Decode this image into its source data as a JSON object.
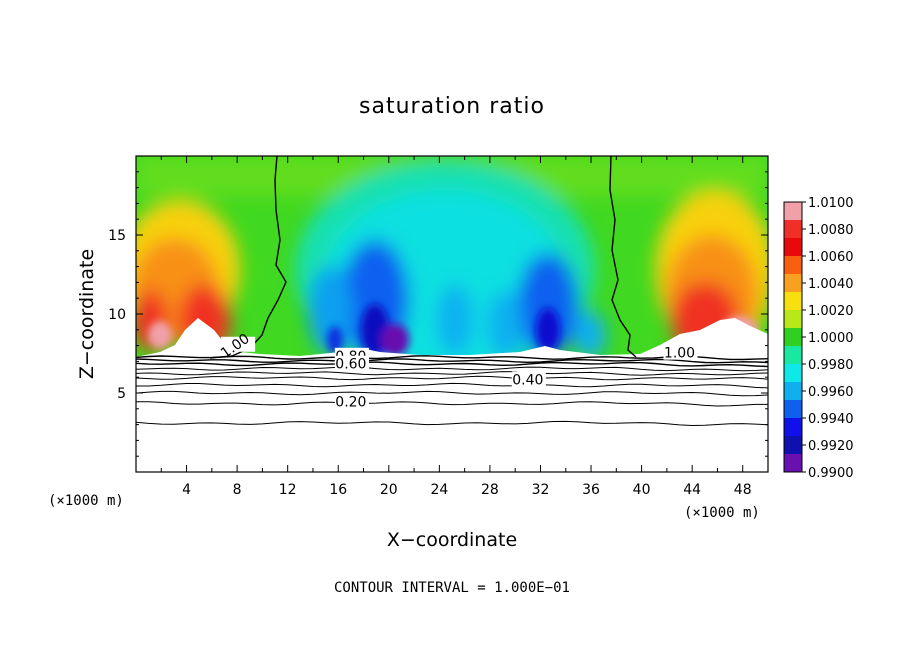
{
  "chart_data": {
    "type": "heatmap",
    "title": "saturation ratio",
    "xlabel": "X−coordinate",
    "ylabel": "Z−coordinate",
    "x_units": "(×1000 m)",
    "x_units_right": "(×1000 m)",
    "footer": "CONTOUR INTERVAL = 1.000E−01",
    "xlim": [
      0,
      50
    ],
    "ylim": [
      0,
      20
    ],
    "xticks": [
      4,
      8,
      12,
      16,
      20,
      24,
      28,
      32,
      36,
      40,
      44,
      48
    ],
    "xtick_labels": [
      "4",
      "8",
      "12",
      "16",
      "20",
      "24",
      "28",
      "32",
      "36",
      "40",
      "44",
      "48"
    ],
    "yticks": [
      5,
      10,
      15
    ],
    "ytick_labels": [
      "5",
      "10",
      "15"
    ],
    "grid": false,
    "colorbar": {
      "min": 0.99,
      "max": 1.01,
      "labels": [
        "1.0100",
        "1.0080",
        "1.0060",
        "1.0040",
        "1.0020",
        "1.0000",
        "0.9980",
        "0.9960",
        "0.9940",
        "0.9920",
        "0.9900"
      ],
      "colors": [
        "#f0a0a8",
        "#f03028",
        "#e80a0a",
        "#f86010",
        "#f8a020",
        "#f8e010",
        "#b8e818",
        "#30d020",
        "#18e8a0",
        "#10e8e8",
        "#10b0f0",
        "#1060f0",
        "#1010e8",
        "#1010b0",
        "#6810b0"
      ]
    },
    "contour_labels": [
      {
        "text": "1.00",
        "x": 8,
        "z": 7.8
      },
      {
        "text": "1.00",
        "x": 43,
        "z": 7.3
      },
      {
        "text": "0.80",
        "x": 17,
        "z": 7.1
      },
      {
        "text": "0.60",
        "x": 17,
        "z": 6.6
      },
      {
        "text": "0.40",
        "x": 31,
        "z": 5.6
      },
      {
        "text": "0.20",
        "x": 17,
        "z": 4.2
      }
    ],
    "contour_levels": [
      0.1,
      0.2,
      0.3,
      0.4,
      0.5,
      0.6,
      0.7,
      0.8,
      0.9
    ],
    "cloud_base_z": 7.2
  }
}
